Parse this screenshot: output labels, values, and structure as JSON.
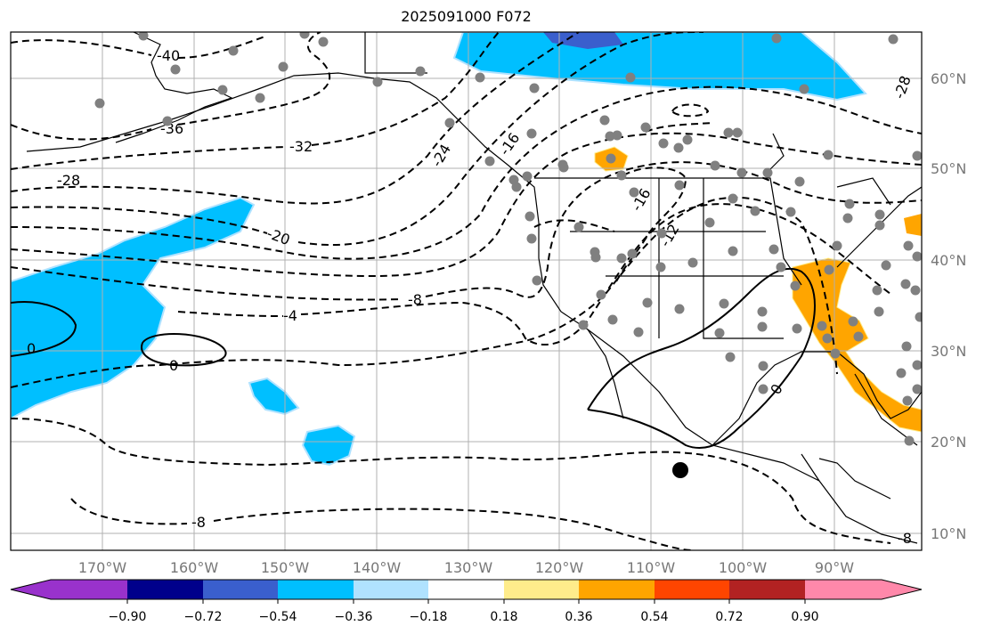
{
  "title": "2025091000 F072",
  "map": {
    "lon_labels": [
      "170°W",
      "160°W",
      "150°W",
      "140°W",
      "130°W",
      "120°W",
      "110°W",
      "100°W",
      "90°W"
    ],
    "lat_labels": [
      "60°N",
      "50°N",
      "40°N",
      "30°N",
      "20°N",
      "10°N"
    ],
    "contour_labels": [
      "-40",
      "-36",
      "-32",
      "-28",
      "-24",
      "-20",
      "-16",
      "-16",
      "-12",
      "-8",
      "-4",
      "0",
      "0",
      "0",
      "-8",
      "-8",
      "-28"
    ],
    "shading_colors": {
      "blue": "#00bfff",
      "light_blue": "#b0e2ff",
      "dark_blue": "#3a5fcd",
      "orange": "#ffa500"
    },
    "station_dot_color": "#808080"
  },
  "colorbar": {
    "colors": [
      "#9932cc",
      "#00008b",
      "#3a5fcd",
      "#00bfff",
      "#b0e2ff",
      "#ffffff",
      "#ffec8b",
      "#ffa500",
      "#ff4500",
      "#b22222",
      "#ff88aa"
    ],
    "tick_labels": [
      "−0.90",
      "−0.72",
      "−0.54",
      "−0.36",
      "−0.18",
      "0.18",
      "0.36",
      "0.54",
      "0.72",
      "0.90"
    ]
  }
}
